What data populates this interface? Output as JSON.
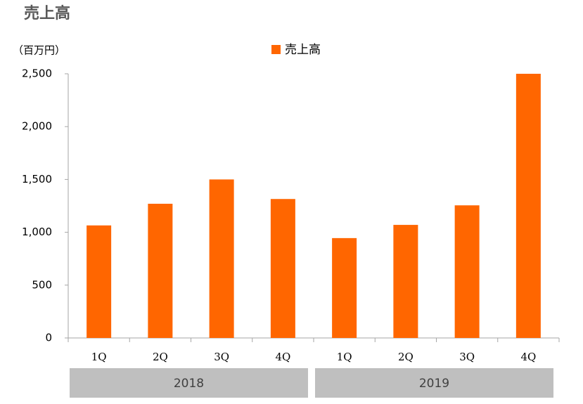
{
  "chart_data": {
    "type": "bar",
    "title": "売上高",
    "y_label": "（百万円）",
    "categories": [
      "1Q",
      "2Q",
      "3Q",
      "4Q",
      "1Q",
      "2Q",
      "3Q",
      "4Q"
    ],
    "groups": [
      "2018",
      "2019"
    ],
    "series": [
      {
        "name": "売上高",
        "color": "#ff6600",
        "values": [
          1065,
          1270,
          1500,
          1315,
          945,
          1070,
          1255,
          2500
        ]
      }
    ],
    "ylim": [
      0,
      2500
    ],
    "yticks": [
      0,
      500,
      {
        "value": 1000,
        "label": "1,000"
      },
      {
        "value": 1500,
        "label": "1,500"
      },
      {
        "value": 2000,
        "label": "2,000"
      },
      {
        "value": 2500,
        "label": "2,500"
      }
    ],
    "grid": false,
    "legend": "top"
  }
}
